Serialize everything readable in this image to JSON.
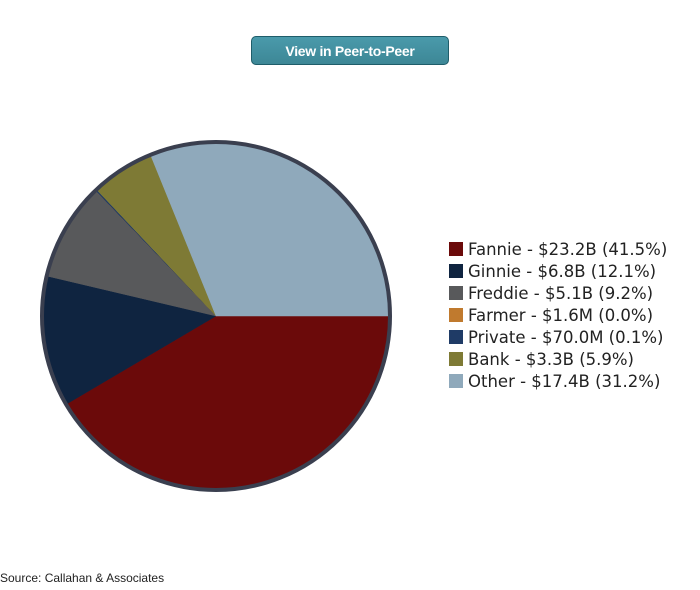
{
  "button": {
    "label": "View in Peer-to-Peer"
  },
  "source": "Source: Callahan & Associates",
  "chart_data": {
    "type": "pie",
    "title": "",
    "slices": [
      {
        "label": "Fannie - $23.2B (41.5%)",
        "name": "Fannie",
        "value": 23.2,
        "percent": 41.5,
        "color": "#6b0a0a"
      },
      {
        "label": "Ginnie - $6.8B (12.1%)",
        "name": "Ginnie",
        "value": 6.8,
        "percent": 12.1,
        "color": "#0f2440"
      },
      {
        "label": "Freddie - $5.1B (9.2%)",
        "name": "Freddie",
        "value": 5.1,
        "percent": 9.2,
        "color": "#58595b"
      },
      {
        "label": "Farmer - $1.6M (0.0%)",
        "name": "Farmer",
        "value": 0.0016,
        "percent": 0.0,
        "color": "#c07a2e"
      },
      {
        "label": "Private - $70.0M (0.1%)",
        "name": "Private",
        "value": 0.07,
        "percent": 0.1,
        "color": "#1f3b66"
      },
      {
        "label": "Bank - $3.3B (5.9%)",
        "name": "Bank",
        "value": 3.3,
        "percent": 5.9,
        "color": "#7e7a35"
      },
      {
        "label": "Other - $17.4B (31.2%)",
        "name": "Other",
        "value": 17.4,
        "percent": 31.2,
        "color": "#8fa9bb"
      }
    ],
    "legend_position": "right"
  }
}
